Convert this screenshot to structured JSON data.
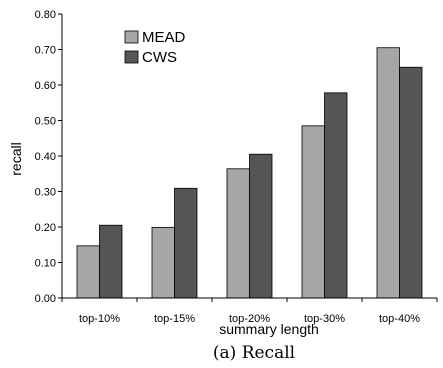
{
  "chart_data": {
    "type": "bar",
    "categories": [
      "top-10%",
      "top-15%",
      "top-20%",
      "top-30%",
      "top-40%"
    ],
    "series": [
      {
        "name": "MEAD",
        "values": [
          0.147,
          0.199,
          0.364,
          0.485,
          0.705
        ],
        "color": "#a6a6a6"
      },
      {
        "name": "CWS",
        "values": [
          0.205,
          0.309,
          0.405,
          0.578,
          0.65
        ],
        "color": "#555555"
      }
    ],
    "xlabel": "summary length",
    "ylabel": "recall",
    "ylim": [
      0,
      0.8
    ],
    "yticks": [
      "0.00",
      "0.10",
      "0.20",
      "0.30",
      "0.40",
      "0.50",
      "0.60",
      "0.70",
      "0.80"
    ],
    "grid": false,
    "legend_position": "top-left",
    "caption": "(a) Recall"
  }
}
